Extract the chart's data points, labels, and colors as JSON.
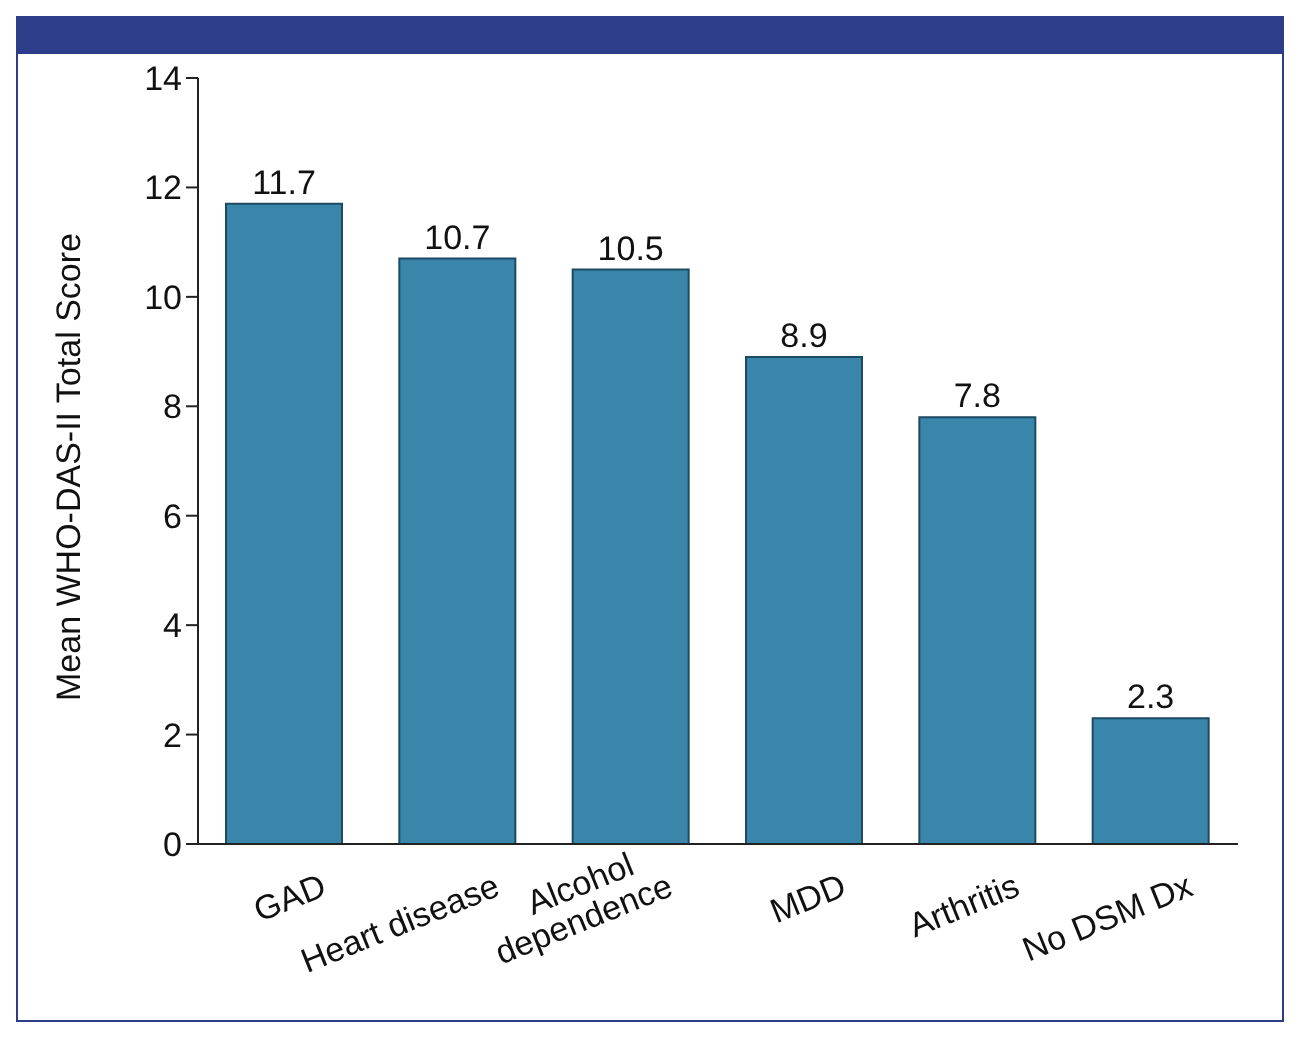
{
  "chart_data": {
    "type": "bar",
    "ylabel": "Mean WHO-DAS-II Total Score",
    "categories": [
      "GAD",
      "Heart disease",
      "Alcohol dependence",
      "MDD",
      "Arthritis",
      "No DSM Dx"
    ],
    "values": [
      11.7,
      10.7,
      10.5,
      8.9,
      7.8,
      2.3
    ],
    "color": "#3a86ab",
    "ylim": [
      0,
      14
    ],
    "yticks": [
      0,
      2,
      4,
      6,
      8,
      10,
      12,
      14
    ],
    "data_labels": true
  }
}
